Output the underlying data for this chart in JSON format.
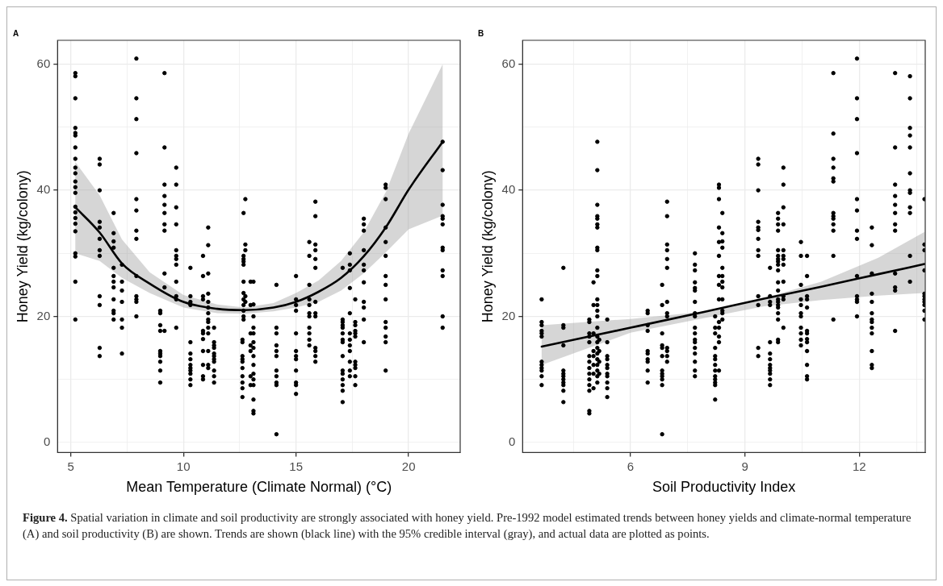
{
  "chart_data": [
    {
      "type": "scatter",
      "title": "A",
      "xlabel": "Mean Temperature (Climate Normal) (°C)",
      "ylabel": "Honey Yield (kg/colony)",
      "xlim": [
        4.41,
        22.29
      ],
      "ylim": [
        -1.6,
        63.8
      ],
      "xticks": [
        5,
        {
          "value": 7.5,
          "label": null
        },
        10,
        {
          "value": 12.5,
          "label": null
        },
        15,
        {
          "value": 17.5,
          "label": null
        },
        20
      ],
      "yticks": [
        0,
        {
          "value": 10,
          "label": null
        },
        20,
        {
          "value": 30,
          "label": null
        },
        40,
        {
          "value": 50,
          "label": null
        },
        60
      ],
      "grid": true,
      "annotations": [
        "Figure 4.",
        "Spatial variation in climate and soil productivity are strongly associated with honey yield. Pre-1992 model estimated trends between honey yields and climate-normal temperature (A) and soil productivity (B) are shown. Trends are shown (black line) with the 95% credible interval (gray), and actual data are plotted as points."
      ],
      "series": [
        {
          "type": "scatter",
          "marker": "circle",
          "color": "#000000",
          "x": [
            5.2,
            5.2,
            5.2,
            5.2,
            5.2,
            5.2,
            5.2,
            5.2,
            5.2,
            5.2,
            5.2,
            5.2,
            5.2,
            5.2,
            5.2,
            5.2,
            5.2,
            5.2,
            5.2,
            5.2,
            5.2,
            5.2,
            6.28,
            6.28,
            6.28,
            6.28,
            6.28,
            6.28,
            6.28,
            6.28,
            6.28,
            6.28,
            6.28,
            6.28,
            6.9,
            6.9,
            6.9,
            6.9,
            6.9,
            6.9,
            6.9,
            6.9,
            6.9,
            6.9,
            6.9,
            6.9,
            7.27,
            7.27,
            7.27,
            7.27,
            7.27,
            7.27,
            7.27,
            7.91,
            7.91,
            7.91,
            7.91,
            7.91,
            7.91,
            7.91,
            7.91,
            7.91,
            7.91,
            7.91,
            7.91,
            7.91,
            8.97,
            8.97,
            8.97,
            8.97,
            8.97,
            8.97,
            8.97,
            8.97,
            8.97,
            8.97,
            9.16,
            9.16,
            9.16,
            9.16,
            9.16,
            9.16,
            9.16,
            9.16,
            9.16,
            9.16,
            9.16,
            9.68,
            9.68,
            9.68,
            9.68,
            9.68,
            9.68,
            9.68,
            9.68,
            9.68,
            9.68,
            9.68,
            9.68,
            10.31,
            10.31,
            10.31,
            10.31,
            10.31,
            10.31,
            10.31,
            10.31,
            10.31,
            10.31,
            10.31,
            10.31,
            10.31,
            10.87,
            10.87,
            10.87,
            10.87,
            10.87,
            10.87,
            10.87,
            10.87,
            10.87,
            10.87,
            10.87,
            11.1,
            11.1,
            11.1,
            11.1,
            11.1,
            11.1,
            11.1,
            11.1,
            11.1,
            11.1,
            11.1,
            11.1,
            11.1,
            11.1,
            11.36,
            11.36,
            11.36,
            11.36,
            11.36,
            11.36,
            11.36,
            11.36,
            11.36,
            11.36,
            11.36,
            12.62,
            12.62,
            12.62,
            12.62,
            12.62,
            12.62,
            12.62,
            12.62,
            12.62,
            12.62,
            12.67,
            12.67,
            12.67,
            12.67,
            12.67,
            12.67,
            12.67,
            12.67,
            12.67,
            12.67,
            12.67,
            12.67,
            12.75,
            12.75,
            12.75,
            12.75,
            12.75,
            12.98,
            12.98,
            12.98,
            12.98,
            12.98,
            12.98,
            12.98,
            13.11,
            13.11,
            13.11,
            13.11,
            13.11,
            13.11,
            13.11,
            13.11,
            13.11,
            13.11,
            13.11,
            13.11,
            13.11,
            13.11,
            13.11,
            14.13,
            14.13,
            14.13,
            14.13,
            14.13,
            14.13,
            14.13,
            14.13,
            14.13,
            14.13,
            14.13,
            15.0,
            15.0,
            15.0,
            15.0,
            15.0,
            15.0,
            15.0,
            15.0,
            15.0,
            15.0,
            15.0,
            15.0,
            15.59,
            15.59,
            15.59,
            15.59,
            15.59,
            15.59,
            15.59,
            15.59,
            15.59,
            15.59,
            15.59,
            15.86,
            15.86,
            15.86,
            15.86,
            15.86,
            15.86,
            15.86,
            15.86,
            15.86,
            15.86,
            15.86,
            15.86,
            15.86,
            17.07,
            17.07,
            17.07,
            17.07,
            17.07,
            17.07,
            17.07,
            17.07,
            17.07,
            17.07,
            17.07,
            17.07,
            17.07,
            17.07,
            17.07,
            17.39,
            17.39,
            17.39,
            17.39,
            17.39,
            17.39,
            17.39,
            17.39,
            17.39,
            17.39,
            17.39,
            17.39,
            17.63,
            17.63,
            17.63,
            17.63,
            17.63,
            17.63,
            17.63,
            17.63,
            17.63,
            17.63,
            17.63,
            18.01,
            18.01,
            18.01,
            18.01,
            18.01,
            18.01,
            18.01,
            18.01,
            18.01,
            18.01,
            18.01,
            18.98,
            18.98,
            18.98,
            18.98,
            18.98,
            18.98,
            18.98,
            18.98,
            18.98,
            18.98,
            18.98,
            18.98,
            18.98,
            18.98,
            21.51,
            21.51,
            21.51,
            21.51,
            21.51,
            21.51,
            21.51,
            21.51,
            21.51,
            21.51,
            21.51,
            21.51
          ],
          "values": [
            58.6,
            58.1,
            54.6,
            49.9,
            49.1,
            48.7,
            46.8,
            45.0,
            43.6,
            42.7,
            41.4,
            40.5,
            39.6,
            37.4,
            36.5,
            35.6,
            34.7,
            33.5,
            30.0,
            29.5,
            25.5,
            19.5,
            45.0,
            44.1,
            40.0,
            35.0,
            34.1,
            32.3,
            30.5,
            29.6,
            23.2,
            21.8,
            15.0,
            13.7,
            36.4,
            33.2,
            31.9,
            30.9,
            27.7,
            26.4,
            25.5,
            24.6,
            22.7,
            20.9,
            20.5,
            19.5,
            28.2,
            25.5,
            24.1,
            22.3,
            19.5,
            18.2,
            14.1,
            60.9,
            54.6,
            51.3,
            45.9,
            38.6,
            36.8,
            33.6,
            32.3,
            26.4,
            23.2,
            22.7,
            22.3,
            20.0,
            20.9,
            20.5,
            18.6,
            17.7,
            14.5,
            14.1,
            13.7,
            12.8,
            11.4,
            9.5,
            58.6,
            46.8,
            40.9,
            39.1,
            37.7,
            36.4,
            34.6,
            33.6,
            26.8,
            24.6,
            17.7,
            43.6,
            40.9,
            37.3,
            34.6,
            30.5,
            29.6,
            29.1,
            28.2,
            25.5,
            23.2,
            22.7,
            18.2,
            27.7,
            23.2,
            22.3,
            21.8,
            15.9,
            14.1,
            13.2,
            12.3,
            11.8,
            11.4,
            10.9,
            10.0,
            9.1,
            29.6,
            26.4,
            23.2,
            22.7,
            17.7,
            17.3,
            16.4,
            14.5,
            12.3,
            10.5,
            10.0,
            34.1,
            31.3,
            26.8,
            23.6,
            22.3,
            21.4,
            20.5,
            19.5,
            19.1,
            18.2,
            17.3,
            14.5,
            12.3,
            11.8,
            18.2,
            15.9,
            15.4,
            15.0,
            14.1,
            13.7,
            13.2,
            12.8,
            11.4,
            10.5,
            9.5,
            16.3,
            15.9,
            13.7,
            13.2,
            12.8,
            11.8,
            10.5,
            9.5,
            8.6,
            7.2,
            36.4,
            29.6,
            29.1,
            28.7,
            28.2,
            25.5,
            23.7,
            22.7,
            21.8,
            20.9,
            20.0,
            19.5,
            38.6,
            31.4,
            30.5,
            23.2,
            22.3,
            25.5,
            21.8,
            17.3,
            15.4,
            14.5,
            10.5,
            9.1,
            25.5,
            21.9,
            20.0,
            18.2,
            17.3,
            15.9,
            15.0,
            13.7,
            12.3,
            10.9,
            10.0,
            9.1,
            6.8,
            5.0,
            4.6,
            25.0,
            18.2,
            17.3,
            15.4,
            14.5,
            13.7,
            11.4,
            10.5,
            9.5,
            9.1,
            1.3,
            26.4,
            22.7,
            21.8,
            20.9,
            17.3,
            14.5,
            13.7,
            13.2,
            11.4,
            9.5,
            9.1,
            7.7,
            31.8,
            29.6,
            25.0,
            22.7,
            21.8,
            20.5,
            20.0,
            18.2,
            17.3,
            16.3,
            15.4,
            38.2,
            35.9,
            31.4,
            30.5,
            29.1,
            27.7,
            22.3,
            20.5,
            20.0,
            15.0,
            14.5,
            13.7,
            12.8,
            27.7,
            19.5,
            19.1,
            18.6,
            18.2,
            17.3,
            16.3,
            15.9,
            13.7,
            11.4,
            10.9,
            10.0,
            9.1,
            8.2,
            6.4,
            30.0,
            28.2,
            27.3,
            24.5,
            20.5,
            17.3,
            16.3,
            15.4,
            14.5,
            12.8,
            11.4,
            10.5,
            22.7,
            19.1,
            18.6,
            17.7,
            17.3,
            16.8,
            12.8,
            12.3,
            11.8,
            10.5,
            9.1,
            35.5,
            34.6,
            33.6,
            30.5,
            28.2,
            27.3,
            25.4,
            22.3,
            21.4,
            19.5,
            15.9,
            40.9,
            40.4,
            38.6,
            34.1,
            31.8,
            29.6,
            26.4,
            25.0,
            22.7,
            19.1,
            18.2,
            16.8,
            15.9,
            11.4,
            47.7,
            43.2,
            37.7,
            35.9,
            35.5,
            34.6,
            30.9,
            30.5,
            27.3,
            26.4,
            20.0,
            18.2
          ]
        },
        {
          "type": "line",
          "color": "#000000",
          "x": [
            5.2,
            6.28,
            7.27,
            8.5,
            10,
            11.5,
            12.7,
            14,
            15,
            16,
            17,
            18,
            19,
            20,
            21.51
          ],
          "values": [
            37.3,
            33.3,
            28.4,
            25.2,
            22.3,
            21.2,
            21.0,
            21.4,
            22.3,
            23.9,
            26.1,
            29.5,
            34.2,
            40.1,
            47.7
          ],
          "lower": [
            30.0,
            28.8,
            26.1,
            23.7,
            21.4,
            20.5,
            20.4,
            20.8,
            21.4,
            22.3,
            24.1,
            26.8,
            30.2,
            33.8,
            36.0
          ],
          "upper": [
            44.5,
            39.2,
            32.2,
            27.0,
            23.4,
            21.9,
            21.4,
            22.1,
            23.7,
            25.7,
            28.8,
            33.3,
            39.8,
            49.0,
            60.0
          ]
        }
      ]
    },
    {
      "type": "scatter",
      "title": "B",
      "xlabel": "Soil Productivity Index",
      "ylabel": "Honey Yield (kg/colony)",
      "xlim": [
        3.17,
        13.73
      ],
      "ylim": [
        -1.6,
        63.8
      ],
      "xticks": [
        {
          "value": 4.5,
          "label": null
        },
        6,
        {
          "value": 7.5,
          "label": null
        },
        9,
        {
          "value": 10.5,
          "label": null
        },
        12,
        {
          "value": 13.5,
          "label": null
        }
      ],
      "yticks": [
        0,
        {
          "value": 10,
          "label": null
        },
        20,
        {
          "value": 30,
          "label": null
        },
        40,
        {
          "value": 50,
          "label": null
        },
        60
      ],
      "grid": true,
      "series": [
        {
          "type": "scatter",
          "marker": "circle",
          "color": "#000000",
          "x": [
            3.67,
            3.67,
            3.67,
            3.67,
            3.67,
            3.67,
            3.67,
            3.67,
            3.67,
            3.67,
            3.67,
            3.67,
            4.24,
            4.24,
            4.24,
            4.24,
            4.24,
            4.24,
            4.24,
            4.24,
            4.24,
            4.24,
            4.24,
            4.24,
            4.92,
            4.92,
            4.92,
            4.92,
            4.92,
            4.92,
            4.92,
            4.92,
            4.92,
            4.92,
            4.92,
            4.92,
            4.92,
            4.92,
            5.03,
            5.03,
            5.03,
            5.03,
            5.03,
            5.03,
            5.03,
            5.03,
            5.13,
            5.13,
            5.13,
            5.13,
            5.13,
            5.13,
            5.13,
            5.13,
            5.13,
            5.13,
            5.13,
            5.13,
            5.13,
            5.13,
            5.13,
            5.13,
            5.13,
            5.13,
            5.13,
            5.13,
            5.13,
            5.13,
            5.13,
            5.13,
            5.13,
            5.18,
            5.18,
            5.18,
            5.18,
            5.39,
            5.39,
            5.39,
            5.39,
            5.39,
            5.39,
            5.39,
            5.39,
            5.39,
            5.39,
            5.39,
            6.45,
            6.45,
            6.45,
            6.45,
            6.45,
            6.45,
            6.45,
            6.45,
            6.45,
            6.45,
            6.83,
            6.83,
            6.83,
            6.83,
            6.83,
            6.83,
            6.83,
            6.83,
            6.83,
            6.83,
            6.83,
            6.83,
            6.96,
            6.96,
            6.96,
            6.96,
            6.96,
            6.96,
            6.96,
            6.96,
            6.96,
            6.96,
            6.96,
            6.96,
            6.96,
            7.69,
            7.69,
            7.69,
            7.69,
            7.69,
            7.69,
            7.69,
            7.69,
            7.69,
            7.69,
            7.69,
            7.69,
            7.69,
            7.69,
            7.69,
            7.69,
            7.69,
            7.69,
            8.22,
            8.22,
            8.22,
            8.22,
            8.22,
            8.22,
            8.22,
            8.22,
            8.22,
            8.22,
            8.22,
            8.22,
            8.22,
            8.32,
            8.32,
            8.32,
            8.32,
            8.32,
            8.32,
            8.32,
            8.32,
            8.32,
            8.32,
            8.32,
            8.32,
            8.32,
            8.32,
            8.41,
            8.41,
            8.41,
            8.41,
            8.41,
            8.41,
            8.41,
            8.41,
            8.41,
            8.41,
            8.41,
            8.41,
            9.35,
            9.35,
            9.35,
            9.35,
            9.35,
            9.35,
            9.35,
            9.35,
            9.35,
            9.35,
            9.35,
            9.35,
            9.35,
            9.66,
            9.66,
            9.66,
            9.66,
            9.66,
            9.66,
            9.66,
            9.66,
            9.66,
            9.66,
            9.66,
            9.66,
            9.66,
            9.87,
            9.87,
            9.87,
            9.87,
            9.87,
            9.87,
            9.87,
            9.87,
            9.87,
            9.87,
            9.87,
            9.87,
            9.87,
            9.87,
            9.87,
            9.87,
            9.87,
            9.87,
            9.87,
            9.87,
            10.01,
            10.01,
            10.01,
            10.01,
            10.01,
            10.01,
            10.01,
            10.01,
            10.01,
            10.01,
            10.01,
            10.01,
            10.47,
            10.47,
            10.47,
            10.47,
            10.47,
            10.47,
            10.47,
            10.47,
            10.47,
            10.47,
            10.47,
            10.63,
            10.63,
            10.63,
            10.63,
            10.63,
            10.63,
            10.63,
            10.63,
            10.63,
            10.63,
            10.63,
            10.63,
            10.63,
            11.32,
            11.32,
            11.32,
            11.32,
            11.32,
            11.32,
            11.32,
            11.32,
            11.32,
            11.32,
            11.32,
            11.32,
            11.32,
            11.94,
            11.94,
            11.94,
            11.94,
            11.94,
            11.94,
            11.94,
            11.94,
            11.94,
            11.94,
            11.94,
            11.94,
            11.94,
            12.33,
            12.33,
            12.33,
            12.33,
            12.33,
            12.33,
            12.33,
            12.33,
            12.33,
            12.33,
            12.33,
            12.33,
            12.33,
            12.94,
            12.94,
            12.94,
            12.94,
            12.94,
            12.94,
            12.94,
            12.94,
            12.94,
            12.94,
            12.94,
            12.94,
            13.33,
            13.33,
            13.33,
            13.33,
            13.33,
            13.33,
            13.33,
            13.33,
            13.33,
            13.33,
            13.33,
            13.33,
            13.71,
            13.71,
            13.71,
            13.71,
            13.71,
            13.71,
            13.71,
            13.71,
            13.71,
            13.71,
            13.71
          ],
          "values": [
            22.7,
            19.1,
            18.6,
            17.7,
            17.3,
            16.8,
            12.8,
            12.3,
            11.8,
            11.4,
            10.5,
            9.1,
            27.7,
            18.6,
            18.2,
            15.4,
            11.4,
            10.9,
            10.5,
            10.0,
            9.5,
            9.1,
            8.2,
            6.4,
            19.5,
            19.1,
            17.3,
            16.8,
            15.9,
            13.7,
            12.8,
            11.8,
            10.9,
            10.0,
            9.1,
            8.2,
            5.0,
            4.6,
            25.4,
            21.8,
            17.3,
            14.5,
            13.7,
            12.3,
            10.9,
            8.6,
            47.7,
            43.2,
            37.7,
            35.9,
            35.5,
            34.6,
            34.1,
            30.9,
            30.5,
            27.3,
            26.4,
            22.7,
            21.8,
            20.9,
            20.0,
            18.2,
            16.8,
            15.9,
            15.0,
            14.1,
            13.2,
            12.3,
            11.4,
            10.5,
            9.5,
            16.3,
            14.5,
            12.8,
            10.9,
            19.5,
            15.9,
            13.7,
            13.2,
            12.3,
            11.8,
            10.9,
            10.5,
            9.5,
            8.6,
            7.2,
            20.9,
            20.5,
            18.6,
            17.7,
            14.5,
            14.1,
            13.2,
            12.8,
            11.4,
            9.5,
            25.0,
            21.8,
            17.3,
            15.4,
            15.0,
            13.7,
            11.4,
            10.9,
            10.5,
            10.0,
            9.1,
            1.3,
            38.2,
            35.9,
            31.4,
            30.5,
            29.1,
            27.7,
            22.3,
            20.5,
            20.0,
            15.0,
            14.5,
            13.7,
            12.8,
            30.0,
            28.2,
            27.3,
            25.4,
            24.5,
            24.1,
            22.3,
            20.5,
            20.0,
            18.2,
            17.3,
            16.3,
            15.9,
            15.0,
            14.1,
            12.8,
            11.4,
            10.5,
            20.0,
            18.2,
            17.3,
            15.0,
            13.7,
            13.2,
            12.3,
            11.4,
            10.5,
            10.0,
            9.5,
            9.1,
            6.8,
            40.9,
            40.4,
            38.6,
            34.1,
            31.8,
            29.6,
            26.4,
            25.0,
            22.7,
            19.1,
            18.2,
            16.8,
            15.9,
            11.4,
            36.4,
            33.2,
            31.9,
            30.9,
            27.7,
            26.4,
            25.5,
            24.6,
            22.7,
            20.9,
            20.5,
            19.5,
            45.0,
            44.1,
            40.0,
            35.0,
            34.1,
            33.7,
            32.3,
            30.5,
            29.6,
            23.2,
            21.8,
            15.0,
            13.7,
            27.7,
            23.2,
            22.3,
            21.8,
            15.9,
            14.1,
            13.2,
            12.3,
            11.8,
            11.4,
            10.9,
            10.0,
            9.1,
            36.4,
            35.5,
            34.6,
            33.6,
            30.5,
            29.6,
            29.1,
            28.7,
            28.2,
            27.3,
            25.4,
            24.1,
            22.7,
            22.3,
            21.8,
            21.4,
            20.5,
            19.5,
            16.3,
            15.9,
            43.6,
            40.9,
            37.3,
            34.6,
            30.5,
            29.6,
            29.1,
            28.2,
            25.5,
            23.2,
            22.7,
            18.2,
            31.8,
            29.6,
            25.0,
            22.7,
            21.8,
            20.5,
            20.0,
            18.2,
            17.3,
            16.3,
            15.4,
            29.6,
            26.4,
            23.2,
            22.7,
            21.4,
            17.7,
            17.3,
            16.4,
            15.9,
            14.5,
            12.3,
            10.5,
            10.0,
            58.6,
            49.0,
            45.0,
            43.6,
            41.9,
            41.4,
            36.4,
            35.9,
            35.5,
            34.6,
            33.6,
            29.6,
            19.5,
            60.9,
            54.6,
            51.3,
            45.9,
            38.6,
            36.8,
            33.6,
            32.3,
            26.4,
            23.2,
            22.7,
            22.3,
            20.0,
            34.1,
            31.3,
            26.8,
            23.6,
            22.3,
            20.5,
            19.5,
            19.1,
            18.2,
            17.3,
            14.5,
            12.3,
            11.8,
            58.6,
            46.8,
            40.9,
            39.1,
            37.7,
            36.4,
            34.6,
            33.6,
            26.8,
            24.6,
            24.1,
            17.7,
            58.1,
            54.6,
            49.9,
            48.7,
            46.8,
            42.7,
            40.0,
            39.6,
            37.3,
            36.4,
            29.6,
            25.5,
            38.6,
            31.4,
            30.5,
            27.3,
            23.6,
            23.2,
            22.7,
            22.3,
            21.8,
            20.9,
            19.5
          ]
        },
        {
          "type": "line",
          "color": "#000000",
          "x": [
            3.67,
            6,
            8,
            9.5,
            11,
            12.5,
            13.71
          ],
          "values": [
            15.2,
            18.2,
            20.8,
            22.8,
            24.7,
            26.7,
            28.3
          ],
          "lower": [
            12.3,
            17.4,
            19.8,
            21.6,
            22.6,
            23.3,
            23.7
          ],
          "upper": [
            18.6,
            19.6,
            20.8,
            22.9,
            25.5,
            29.3,
            33.4
          ]
        }
      ]
    }
  ]
}
